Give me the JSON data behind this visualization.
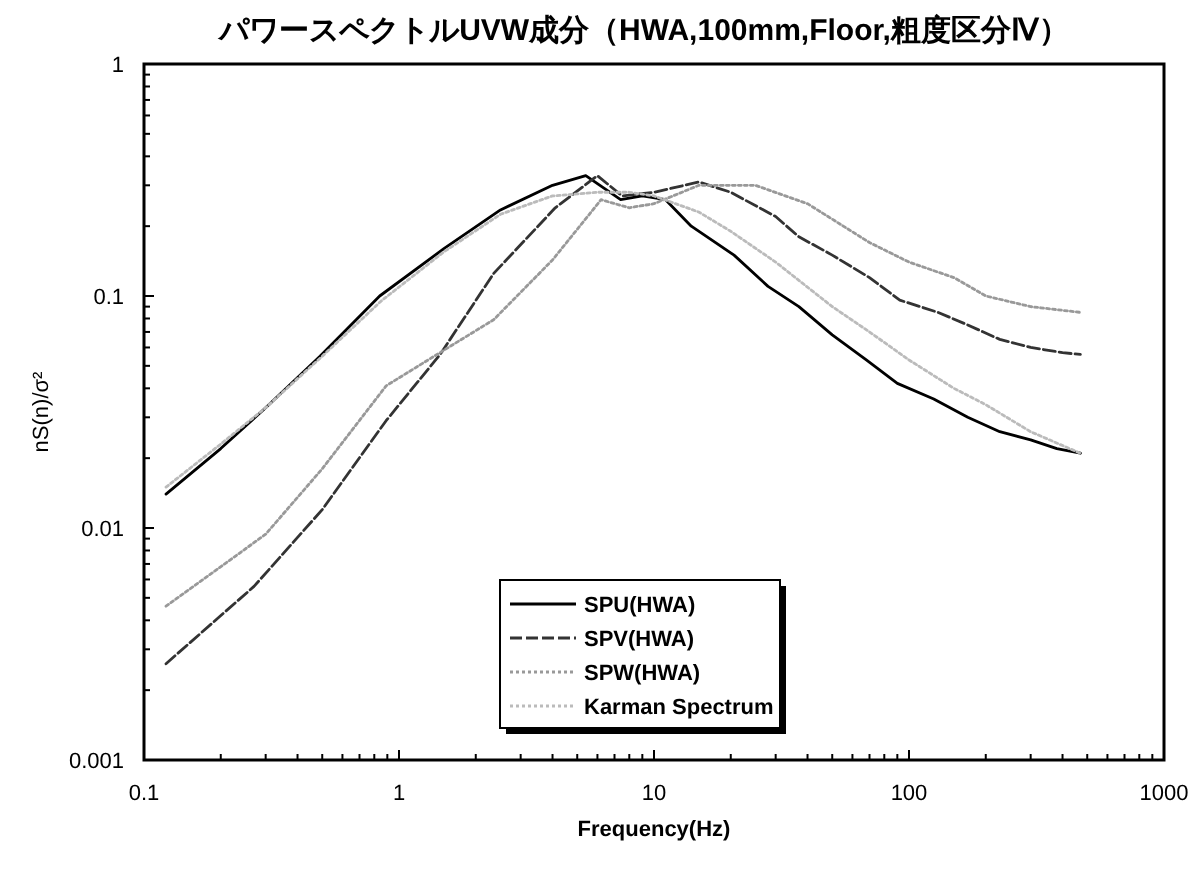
{
  "chart_data": {
    "type": "line",
    "title": "パワースペクトルUVW成分（HWA,100mm,Floor,粗度区分Ⅳ）",
    "xlabel": "Frequency(Hz)",
    "ylabel": "nS(n)/σ²",
    "log": "xy",
    "xlim": [
      0.1,
      1000
    ],
    "ylim": [
      0.001,
      1
    ],
    "xticks": [
      0.1,
      1,
      10,
      100,
      1000
    ],
    "yticks": [
      0.001,
      0.01,
      0.1,
      1
    ],
    "legend": "bottom",
    "marker": "none",
    "grid": false,
    "series": [
      {
        "name": "SPU(HWA)",
        "color": "#000000",
        "line_style": "solid",
        "x": [
          0.122,
          0.2,
          0.3,
          0.49,
          0.84,
          1.5,
          2.5,
          4,
          5.4,
          7.4,
          9,
          11.1,
          14,
          20.6,
          28,
          37,
          50,
          68,
          90,
          125,
          170,
          227,
          300,
          380,
          470
        ],
        "values": [
          0.014,
          0.022,
          0.033,
          0.055,
          0.1,
          0.16,
          0.235,
          0.3,
          0.33,
          0.26,
          0.27,
          0.26,
          0.2,
          0.15,
          0.11,
          0.09,
          0.068,
          0.053,
          0.042,
          0.036,
          0.03,
          0.026,
          0.024,
          0.022,
          0.021
        ]
      },
      {
        "name": "SPV(HWA)",
        "color": "#333333",
        "line_style": "dashed",
        "x": [
          0.122,
          0.27,
          0.5,
          0.89,
          1.45,
          2.35,
          4.1,
          6,
          7.5,
          10,
          15,
          20,
          30,
          37,
          50,
          70,
          92,
          130,
          170,
          227,
          300,
          400,
          470
        ],
        "values": [
          0.0026,
          0.0056,
          0.012,
          0.029,
          0.056,
          0.125,
          0.24,
          0.33,
          0.27,
          0.28,
          0.31,
          0.28,
          0.22,
          0.18,
          0.15,
          0.12,
          0.096,
          0.085,
          0.075,
          0.065,
          0.06,
          0.057,
          0.056
        ]
      },
      {
        "name": "SPW(HWA)",
        "color": "#999999",
        "line_style": "dotted",
        "x": [
          0.122,
          0.3,
          0.5,
          0.89,
          1.6,
          2.35,
          4,
          6.2,
          8,
          10,
          15,
          25,
          40,
          70,
          100,
          150,
          200,
          300,
          470
        ],
        "values": [
          0.0046,
          0.0094,
          0.018,
          0.041,
          0.061,
          0.079,
          0.143,
          0.26,
          0.24,
          0.25,
          0.3,
          0.3,
          0.25,
          0.17,
          0.14,
          0.12,
          0.1,
          0.09,
          0.085
        ]
      },
      {
        "name": "Karman Spectrum",
        "color": "#bbbbbb",
        "line_style": "dotted",
        "x": [
          0.122,
          0.2,
          0.3,
          0.5,
          0.85,
          1.5,
          2.5,
          4,
          6,
          8,
          10,
          15,
          20,
          30,
          50,
          70,
          100,
          150,
          200,
          300,
          470
        ],
        "values": [
          0.015,
          0.023,
          0.033,
          0.055,
          0.095,
          0.155,
          0.225,
          0.27,
          0.28,
          0.28,
          0.27,
          0.23,
          0.19,
          0.14,
          0.09,
          0.07,
          0.053,
          0.04,
          0.034,
          0.026,
          0.021
        ]
      }
    ]
  }
}
